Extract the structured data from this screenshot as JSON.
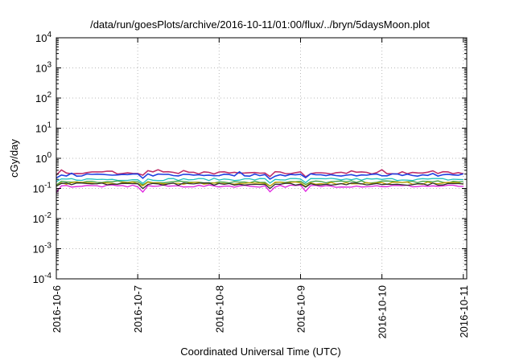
{
  "chart_data": {
    "type": "line",
    "title": "/data/run/goesPlots/archive/2016-10-11/01:00/flux/../bryn/5daysMoon.plot",
    "xlabel": "Coordinated Universal Time (UTC)",
    "ylabel": "cGy/day",
    "yscale": "log",
    "ylim": [
      0.0001,
      10000
    ],
    "y_ticks": [
      {
        "value": 0.0001,
        "base": "10",
        "exp": "-4"
      },
      {
        "value": 0.001,
        "base": "10",
        "exp": "-3"
      },
      {
        "value": 0.01,
        "base": "10",
        "exp": "-2"
      },
      {
        "value": 0.1,
        "base": "10",
        "exp": "-1"
      },
      {
        "value": 1,
        "base": "10",
        "exp": "0"
      },
      {
        "value": 10,
        "base": "10",
        "exp": "1"
      },
      {
        "value": 100,
        "base": "10",
        "exp": "2"
      },
      {
        "value": 1000,
        "base": "10",
        "exp": "3"
      },
      {
        "value": 10000,
        "base": "10",
        "exp": "4"
      }
    ],
    "xlim": [
      "2016-10-06 00:00",
      "2016-10-11 01:00"
    ],
    "x_ticks": [
      "2016-10-6",
      "2016-10-7",
      "2016-10-8",
      "2016-10-9",
      "2016-10-10",
      "2016-10-11"
    ],
    "grid": true,
    "legend": "none",
    "series": [
      {
        "color": "#c0306a",
        "base_value": 0.33,
        "x_step_hours": 1.5
      },
      {
        "color": "#2040e0",
        "base_value": 0.28,
        "x_step_hours": 1.5
      },
      {
        "color": "#20c0c0",
        "base_value": 0.2,
        "x_step_hours": 1.5
      },
      {
        "color": "#40a040",
        "base_value": 0.165,
        "x_step_hours": 1.5
      },
      {
        "color": "#c0a000",
        "base_value": 0.15,
        "x_step_hours": 1.5
      },
      {
        "color": "#e020e0",
        "base_value": 0.12,
        "x_step_hours": 1.5
      },
      {
        "color": "#303030",
        "base_value": 0.14,
        "x_step_hours": 1.5
      }
    ]
  }
}
